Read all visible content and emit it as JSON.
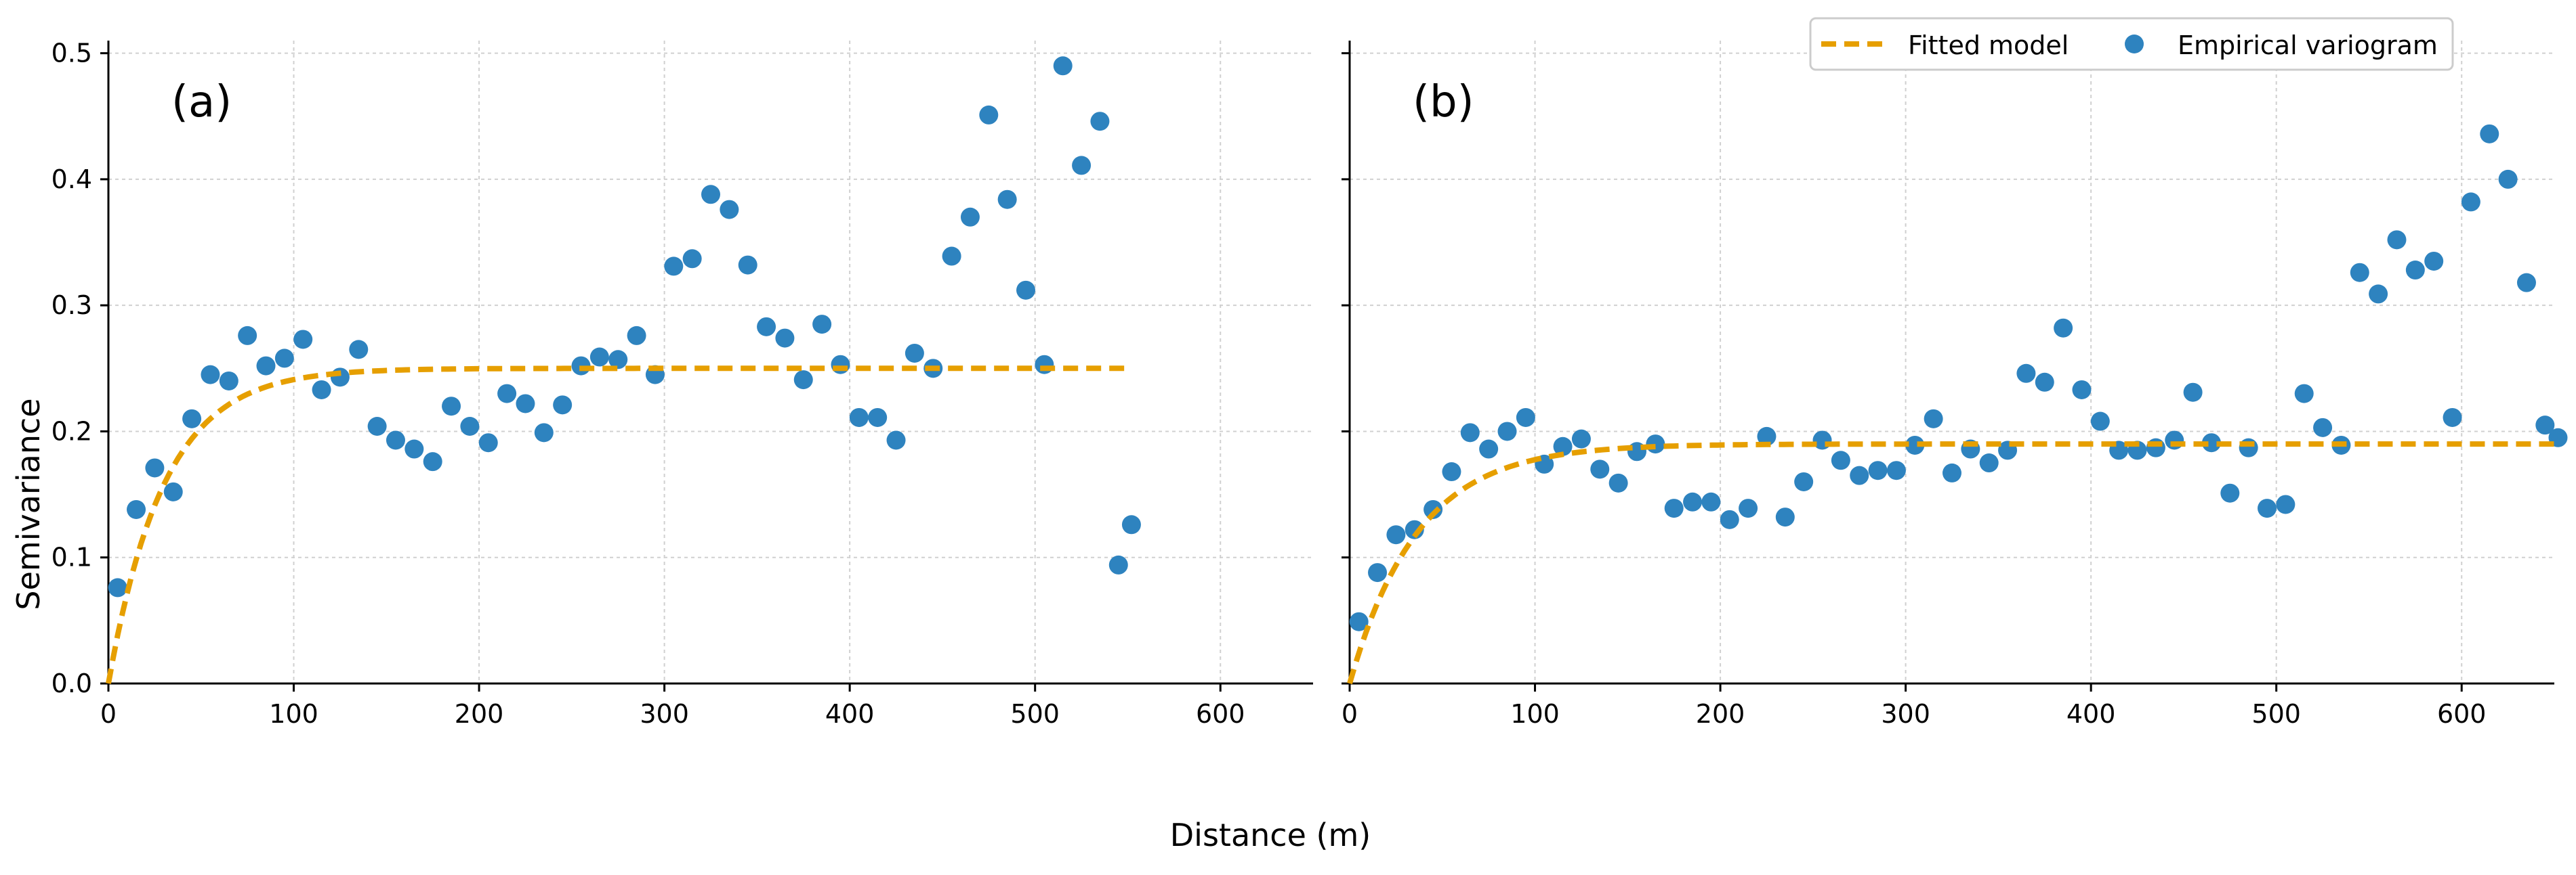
{
  "figure": {
    "xlabel": "Distance (m)",
    "ylabel": "Semivariance"
  },
  "legend": {
    "placement": "top-right",
    "fitted_label": "Fitted model",
    "empirical_label": "Empirical variogram"
  },
  "colors": {
    "points": "#2e83bf",
    "fit": "#e69f00",
    "grid": "#d0d0d0",
    "axis": "#000000"
  },
  "chart_data": [
    {
      "type": "scatter",
      "panel_label": "(a)",
      "xlabel": "Distance (m)",
      "ylabel": "Semivariance",
      "xlim": [
        0,
        650
      ],
      "ylim": [
        0,
        0.51
      ],
      "xticks": [
        0,
        100,
        200,
        300,
        400,
        500,
        600
      ],
      "xtick_labels": [
        "0",
        "100",
        "200",
        "300",
        "400",
        "500",
        "600"
      ],
      "yticks": [
        0.0,
        0.1,
        0.2,
        0.3,
        0.4,
        0.5
      ],
      "ytick_labels": [
        "0.0",
        "0.1",
        "0.2",
        "0.3",
        "0.4",
        "0.5"
      ],
      "grid": true,
      "series": [
        {
          "name": "Empirical variogram",
          "kind": "points",
          "x": [
            5,
            15,
            25,
            35,
            45,
            55,
            65,
            75,
            85,
            95,
            105,
            115,
            125,
            135,
            145,
            155,
            165,
            175,
            185,
            195,
            205,
            215,
            225,
            235,
            245,
            255,
            265,
            275,
            285,
            295,
            305,
            315,
            325,
            335,
            345,
            355,
            365,
            375,
            385,
            395,
            405,
            415,
            425,
            435,
            445,
            455,
            465,
            475,
            485,
            495,
            505,
            515,
            525,
            535,
            545,
            552
          ],
          "y": [
            0.076,
            0.138,
            0.171,
            0.152,
            0.21,
            0.245,
            0.24,
            0.276,
            0.252,
            0.258,
            0.273,
            0.233,
            0.243,
            0.265,
            0.204,
            0.193,
            0.186,
            0.176,
            0.22,
            0.204,
            0.191,
            0.23,
            0.222,
            0.199,
            0.221,
            0.252,
            0.259,
            0.257,
            0.276,
            0.245,
            0.331,
            0.337,
            0.388,
            0.376,
            0.332,
            0.283,
            0.274,
            0.241,
            0.285,
            0.253,
            0.211,
            0.211,
            0.193,
            0.262,
            0.25,
            0.339,
            0.37,
            0.451,
            0.384,
            0.312,
            0.253,
            0.49,
            0.411,
            0.446,
            0.094,
            0.126
          ]
        },
        {
          "name": "Fitted model",
          "kind": "line",
          "model": "exponential",
          "nugget": 0.0,
          "sill": 0.25,
          "range_m": 90,
          "x_max": 552
        }
      ]
    },
    {
      "type": "scatter",
      "panel_label": "(b)",
      "xlabel": "Distance (m)",
      "ylabel": "Semivariance",
      "xlim": [
        0,
        650
      ],
      "ylim": [
        0,
        0.51
      ],
      "xticks": [
        0,
        100,
        200,
        300,
        400,
        500,
        600
      ],
      "xtick_labels": [
        "0",
        "100",
        "200",
        "300",
        "400",
        "500",
        "600"
      ],
      "yticks": [
        0.0,
        0.1,
        0.2,
        0.3,
        0.4,
        0.5
      ],
      "grid": true,
      "series": [
        {
          "name": "Empirical variogram",
          "kind": "points",
          "x": [
            5,
            15,
            25,
            35,
            45,
            55,
            65,
            75,
            85,
            95,
            105,
            115,
            125,
            135,
            145,
            155,
            165,
            175,
            185,
            195,
            205,
            215,
            225,
            235,
            245,
            255,
            265,
            275,
            285,
            295,
            305,
            315,
            325,
            335,
            345,
            355,
            365,
            375,
            385,
            395,
            405,
            415,
            425,
            435,
            445,
            455,
            465,
            475,
            485,
            495,
            505,
            515,
            525,
            535,
            545,
            555,
            565,
            575,
            585,
            595,
            605,
            615,
            625,
            635,
            645,
            652
          ],
          "y": [
            0.049,
            0.088,
            0.118,
            0.122,
            0.138,
            0.168,
            0.199,
            0.186,
            0.2,
            0.211,
            0.174,
            0.188,
            0.194,
            0.17,
            0.159,
            0.184,
            0.19,
            0.139,
            0.144,
            0.144,
            0.13,
            0.139,
            0.196,
            0.132,
            0.16,
            0.193,
            0.177,
            0.165,
            0.169,
            0.169,
            0.189,
            0.21,
            0.167,
            0.186,
            0.175,
            0.185,
            0.246,
            0.239,
            0.282,
            0.233,
            0.208,
            0.185,
            0.185,
            0.187,
            0.193,
            0.231,
            0.191,
            0.151,
            0.187,
            0.139,
            0.142,
            0.23,
            0.203,
            0.189,
            0.326,
            0.309,
            0.352,
            0.328,
            0.335,
            0.211,
            0.382,
            0.436,
            0.4,
            0.318,
            0.205,
            0.195
          ]
        },
        {
          "name": "Fitted model",
          "kind": "line",
          "model": "exponential",
          "nugget": 0.0,
          "sill": 0.19,
          "range_m": 110,
          "x_max": 652
        }
      ]
    }
  ]
}
